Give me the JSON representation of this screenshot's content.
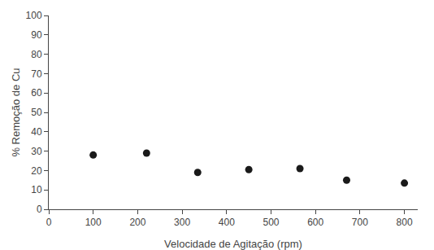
{
  "chart_data": {
    "type": "scatter",
    "x": [
      100,
      220,
      335,
      450,
      565,
      670,
      800
    ],
    "values": [
      28,
      29,
      19,
      20.5,
      21,
      15,
      13.5
    ],
    "xlabel": "Velocidade de Agitação (rpm)",
    "ylabel": "% Remoção de Cu",
    "xlim": [
      0,
      830
    ],
    "ylim": [
      0,
      100
    ],
    "xticks": [
      0,
      100,
      200,
      300,
      400,
      500,
      600,
      700,
      800
    ],
    "yticks": [
      0,
      10,
      20,
      30,
      40,
      50,
      60,
      70,
      80,
      90,
      100
    ],
    "color": "#1a1a1a",
    "marker": "circle",
    "grid": false
  }
}
